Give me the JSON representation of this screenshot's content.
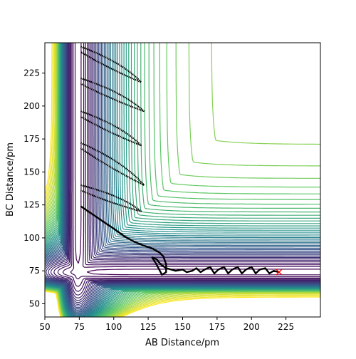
{
  "chart_data": {
    "type": "contour",
    "title": "",
    "xlabel": "AB Distance/pm",
    "ylabel": "BC Distance/pm",
    "xlim": [
      50,
      250
    ],
    "ylim": [
      40,
      248
    ],
    "x_ticks": [
      50,
      75,
      100,
      125,
      150,
      175,
      200,
      225
    ],
    "y_ticks": [
      50,
      75,
      100,
      125,
      150,
      175,
      200,
      225
    ],
    "grid": false,
    "colormap": [
      "#440154",
      "#3b528b",
      "#21918c",
      "#5ec962",
      "#fde725"
    ],
    "contour_levels": 50,
    "trajectory": {
      "color": "#000000",
      "points": [
        [
          76,
          124
        ],
        [
          90,
          114
        ],
        [
          100,
          107
        ],
        [
          108,
          101
        ],
        [
          115,
          97
        ],
        [
          122,
          94
        ],
        [
          128,
          92
        ],
        [
          133,
          89
        ],
        [
          136,
          86
        ],
        [
          138,
          80
        ],
        [
          138,
          74
        ],
        [
          135,
          72
        ],
        [
          131,
          80
        ],
        [
          128,
          85
        ],
        [
          131,
          84
        ],
        [
          134,
          80
        ],
        [
          138,
          77
        ],
        [
          145,
          75
        ],
        [
          150,
          76
        ],
        [
          153,
          74
        ],
        [
          157,
          75
        ],
        [
          160,
          77
        ],
        [
          163,
          74
        ],
        [
          166,
          76
        ],
        [
          170,
          78
        ],
        [
          173,
          73
        ],
        [
          176,
          76
        ],
        [
          180,
          78
        ],
        [
          183,
          73
        ],
        [
          186,
          76
        ],
        [
          190,
          78
        ],
        [
          193,
          73
        ],
        [
          196,
          76
        ],
        [
          200,
          78
        ],
        [
          203,
          73
        ],
        [
          206,
          76
        ],
        [
          210,
          77
        ],
        [
          213,
          73
        ],
        [
          216,
          75
        ],
        [
          220,
          74
        ]
      ]
    },
    "oscillation_loops": [
      {
        "start": [
          76,
          140
        ],
        "turn": [
          120,
          120
        ]
      },
      {
        "start": [
          76,
          172
        ],
        "turn": [
          122,
          140
        ]
      },
      {
        "start": [
          76,
          196
        ],
        "turn": [
          120,
          170
        ]
      },
      {
        "start": [
          76,
          221
        ],
        "turn": [
          122,
          196
        ]
      },
      {
        "start": [
          76,
          245
        ],
        "turn": [
          120,
          218
        ]
      }
    ],
    "marker": {
      "x": 220,
      "y": 74,
      "symbol": "x",
      "color": "#ff0000"
    }
  }
}
